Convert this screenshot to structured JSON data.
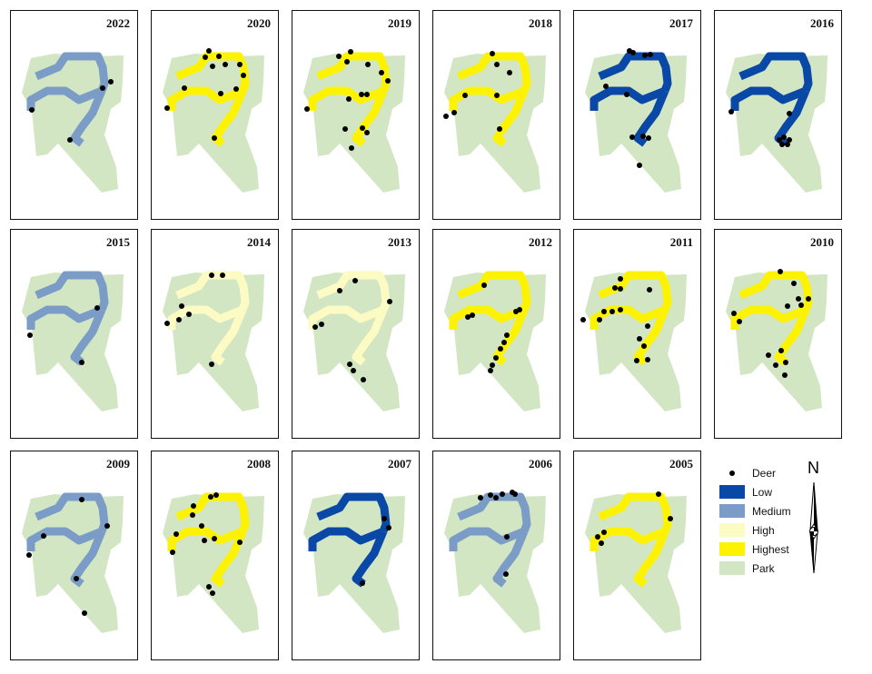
{
  "colors": {
    "Low": "#0a48a8",
    "Medium": "#7b9cc6",
    "High": "#fdfbc4",
    "Highest": "#fdf200",
    "Park": "#d3e6c3",
    "Deer": "#000000"
  },
  "panels": [
    {
      "year": "2022",
      "level": "Medium"
    },
    {
      "year": "2020",
      "level": "Highest"
    },
    {
      "year": "2019",
      "level": "Highest"
    },
    {
      "year": "2018",
      "level": "Highest"
    },
    {
      "year": "2017",
      "level": "Low"
    },
    {
      "year": "2016",
      "level": "Low"
    },
    {
      "year": "2015",
      "level": "Medium"
    },
    {
      "year": "2014",
      "level": "High"
    },
    {
      "year": "2013",
      "level": "High"
    },
    {
      "year": "2012",
      "level": "Highest"
    },
    {
      "year": "2011",
      "level": "Highest"
    },
    {
      "year": "2010",
      "level": "Highest"
    },
    {
      "year": "2009",
      "level": "Medium"
    },
    {
      "year": "2008",
      "level": "Highest"
    },
    {
      "year": "2007",
      "level": "Low"
    },
    {
      "year": "2006",
      "level": "Medium"
    },
    {
      "year": "2005",
      "level": "Highest"
    }
  ],
  "legend": {
    "deer": "Deer",
    "items": [
      "Low",
      "Medium",
      "High",
      "Highest",
      "Park"
    ]
  },
  "north_arrow": "N"
}
